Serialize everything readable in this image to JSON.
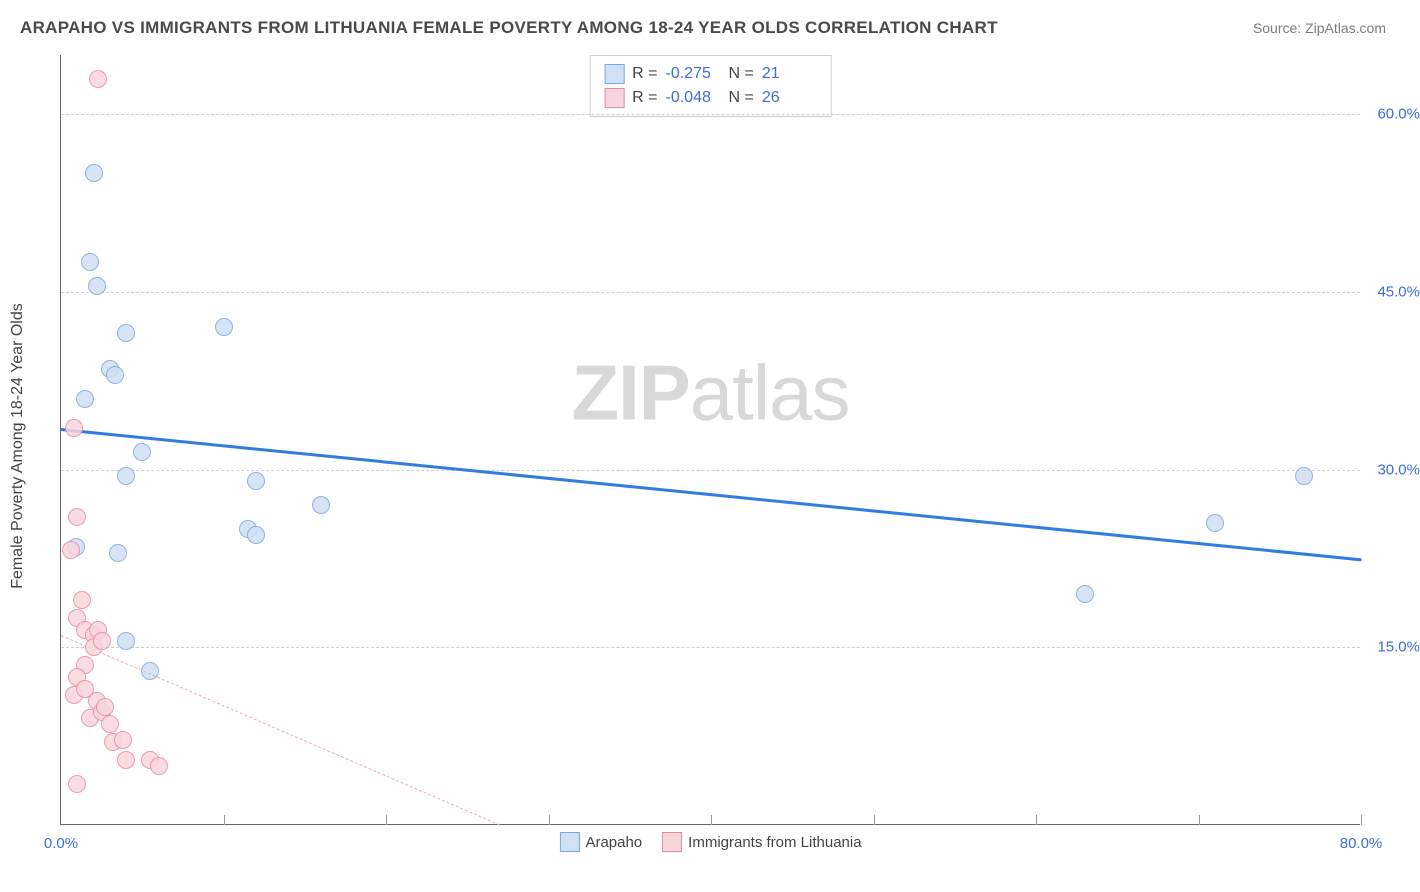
{
  "title": "ARAPAHO VS IMMIGRANTS FROM LITHUANIA FEMALE POVERTY AMONG 18-24 YEAR OLDS CORRELATION CHART",
  "source": "Source: ZipAtlas.com",
  "y_axis_title": "Female Poverty Among 18-24 Year Olds",
  "watermark_a": "ZIP",
  "watermark_b": "atlas",
  "chart": {
    "type": "scatter",
    "background_color": "#ffffff",
    "grid_color": "#d8d8d8",
    "axis_color": "#666666",
    "text_color": "#444444",
    "value_color": "#3b6fd6",
    "xlim": [
      0,
      80
    ],
    "ylim": [
      0,
      65
    ],
    "x_ticks": [
      0,
      10,
      20,
      30,
      40,
      50,
      60,
      70,
      80
    ],
    "x_tick_labels": {
      "0": "0.0%",
      "80": "80.0%"
    },
    "y_gridlines": [
      15,
      30,
      45,
      60
    ],
    "y_tick_labels": {
      "15": "15.0%",
      "30": "30.0%",
      "45": "45.0%",
      "60": "60.0%"
    },
    "marker_radius": 9,
    "marker_stroke_width": 1.5
  },
  "series": [
    {
      "name": "Arapaho",
      "fill": "#cfe0f5",
      "stroke": "#7aa8e0",
      "trend_color": "#2f7de0",
      "trend_width": 3,
      "trend_dash": "solid",
      "R": "-0.275",
      "N": "21",
      "trend": {
        "x1": 0,
        "y1": 33.5,
        "x2": 80,
        "y2": 22.5
      },
      "points": [
        [
          2.0,
          55.0
        ],
        [
          1.8,
          47.5
        ],
        [
          2.2,
          45.5
        ],
        [
          4.0,
          41.5
        ],
        [
          3.0,
          38.5
        ],
        [
          3.3,
          38.0
        ],
        [
          1.5,
          36.0
        ],
        [
          0.9,
          23.5
        ],
        [
          5.0,
          31.5
        ],
        [
          4.0,
          29.5
        ],
        [
          10.0,
          42.0
        ],
        [
          12.0,
          29.0
        ],
        [
          11.5,
          25.0
        ],
        [
          16.0,
          27.0
        ],
        [
          12.0,
          24.5
        ],
        [
          3.5,
          23.0
        ],
        [
          4.0,
          15.5
        ],
        [
          5.5,
          13.0
        ],
        [
          63.0,
          19.5
        ],
        [
          71.0,
          25.5
        ],
        [
          76.5,
          29.5
        ]
      ]
    },
    {
      "name": "Immigrants from Lithuania",
      "fill": "#f8d6de",
      "stroke": "#e98ba2",
      "trend_color": "#e8aeb9",
      "trend_width": 1.5,
      "trend_dash": "6,5",
      "R": "-0.048",
      "N": "26",
      "trend": {
        "x1": 0,
        "y1": 16.0,
        "x2": 27,
        "y2": 0
      },
      "points": [
        [
          2.3,
          63.0
        ],
        [
          0.8,
          33.5
        ],
        [
          0.6,
          23.2
        ],
        [
          1.0,
          26.0
        ],
        [
          1.3,
          19.0
        ],
        [
          1.0,
          17.5
        ],
        [
          1.5,
          16.5
        ],
        [
          2.0,
          16.0
        ],
        [
          2.3,
          16.5
        ],
        [
          2.0,
          15.0
        ],
        [
          2.5,
          15.5
        ],
        [
          1.5,
          13.5
        ],
        [
          1.0,
          12.5
        ],
        [
          0.8,
          11.0
        ],
        [
          1.5,
          11.5
        ],
        [
          2.2,
          10.5
        ],
        [
          1.8,
          9.0
        ],
        [
          2.5,
          9.5
        ],
        [
          3.0,
          8.5
        ],
        [
          2.7,
          10.0
        ],
        [
          3.2,
          7.0
        ],
        [
          3.8,
          7.2
        ],
        [
          4.0,
          5.5
        ],
        [
          5.5,
          5.5
        ],
        [
          6.0,
          5.0
        ],
        [
          1.0,
          3.5
        ]
      ]
    }
  ],
  "bottom_legend": [
    "Arapaho",
    "Immigrants from Lithuania"
  ]
}
